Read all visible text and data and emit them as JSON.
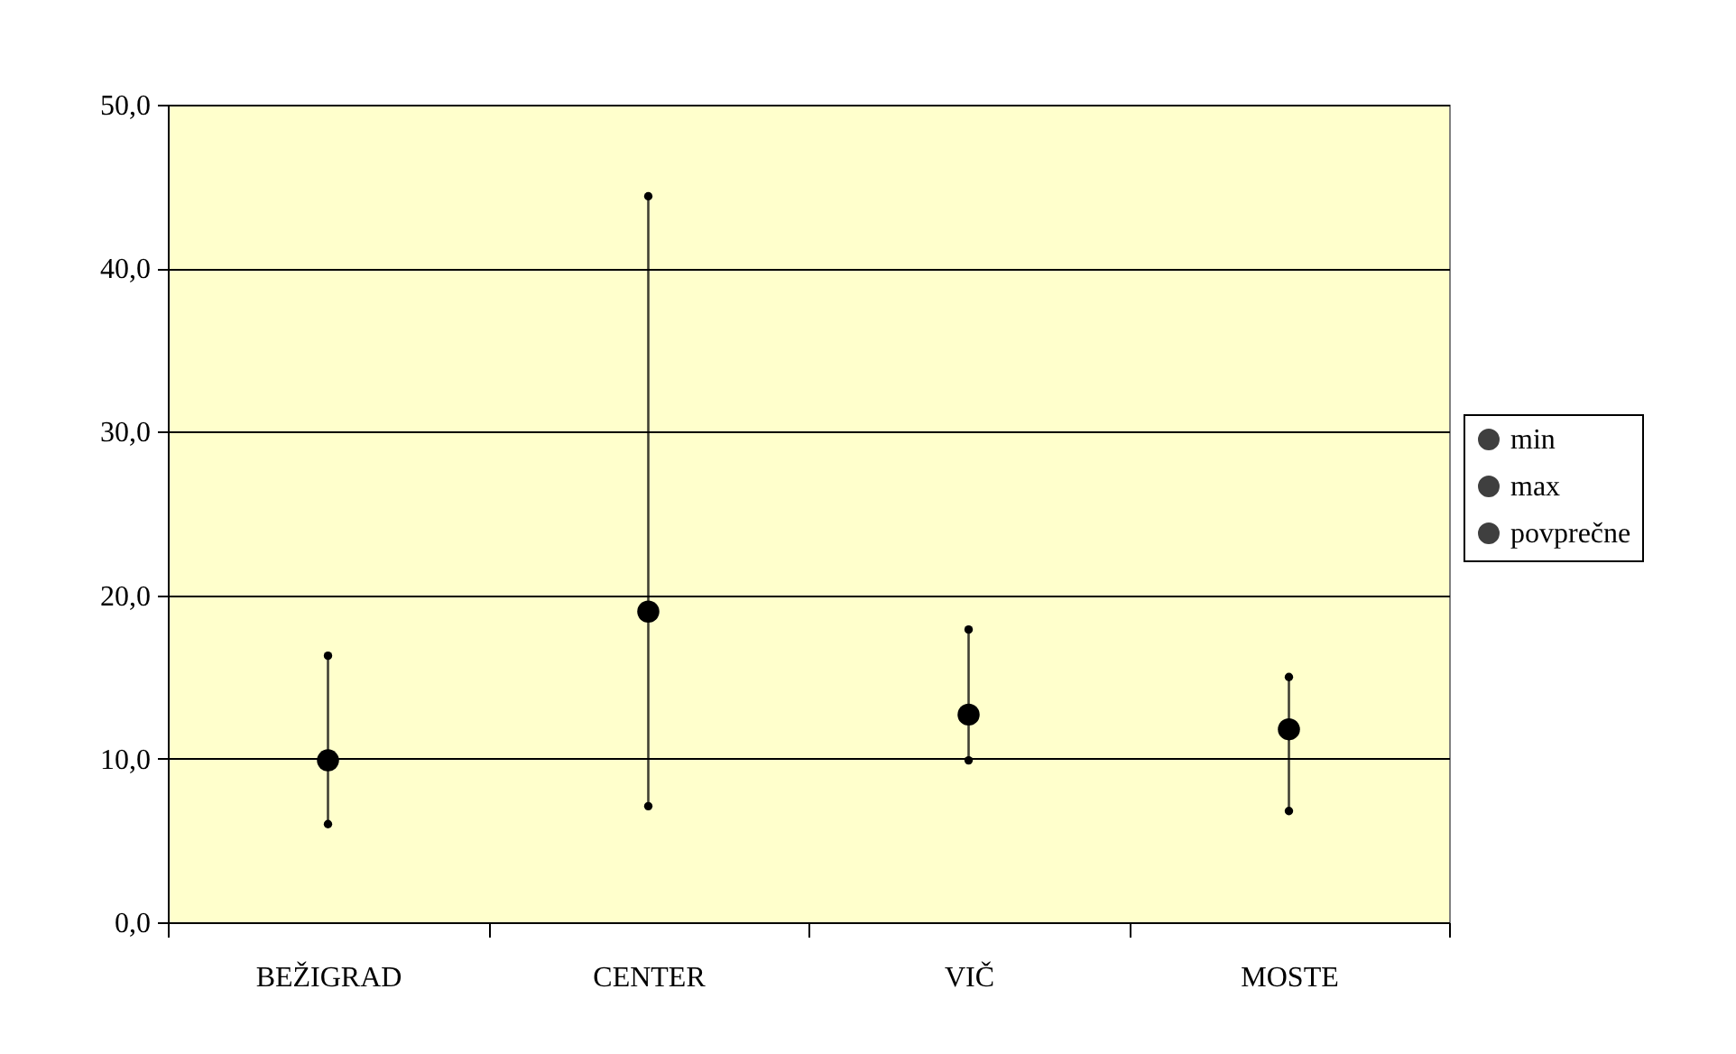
{
  "chart_data": {
    "type": "scatter",
    "categories": [
      "BEŽIGRAD",
      "CENTER",
      "VIČ",
      "MOSTE"
    ],
    "series": [
      {
        "name": "min",
        "color": "#000000",
        "values": [
          6.0,
          7.1,
          9.9,
          6.8
        ]
      },
      {
        "name": "max",
        "color": "#000000",
        "values": [
          16.3,
          44.4,
          17.9,
          15.0
        ]
      },
      {
        "name": "povprečne",
        "color": "#000000",
        "marker": "circle",
        "values": [
          9.9,
          19.0,
          12.7,
          11.8
        ]
      }
    ],
    "ylim": [
      0,
      50
    ],
    "yticks": [
      {
        "value": 0,
        "label": "0,0"
      },
      {
        "value": 10,
        "label": "10,0"
      },
      {
        "value": 20,
        "label": "20,0"
      },
      {
        "value": 30,
        "label": "30,0"
      },
      {
        "value": 40,
        "label": "40,0"
      },
      {
        "value": 50,
        "label": "50,0"
      }
    ],
    "grid": "y",
    "legend": "right"
  }
}
